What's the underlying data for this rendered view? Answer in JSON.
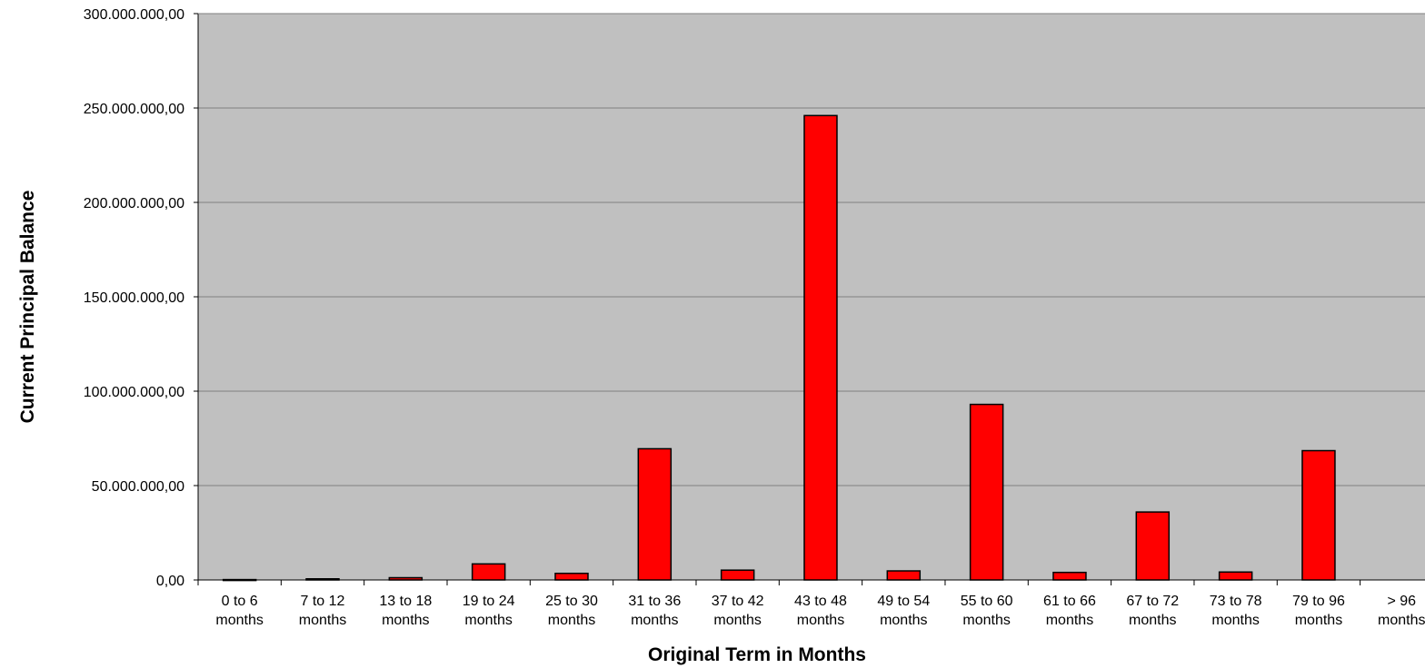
{
  "chart_data": {
    "type": "bar",
    "title": "",
    "xlabel": "Original Term in Months",
    "ylabel": "Current Principal Balance",
    "ylim": [
      0,
      300000000
    ],
    "yticks": [
      {
        "value": 0,
        "label": "0,00"
      },
      {
        "value": 50000000,
        "label": "50.000.000,00"
      },
      {
        "value": 100000000,
        "label": "100.000.000,00"
      },
      {
        "value": 150000000,
        "label": "150.000.000,00"
      },
      {
        "value": 200000000,
        "label": "200.000.000,00"
      },
      {
        "value": 250000000,
        "label": "250.000.000,00"
      },
      {
        "value": 300000000,
        "label": "300.000.000,00"
      }
    ],
    "categories": [
      [
        "0 to 6",
        "months"
      ],
      [
        "7 to 12",
        "months"
      ],
      [
        "13 to 18",
        "months"
      ],
      [
        "19 to 24",
        "months"
      ],
      [
        "25 to 30",
        "months"
      ],
      [
        "31 to 36",
        "months"
      ],
      [
        "37 to 42",
        "months"
      ],
      [
        "43 to 48",
        "months"
      ],
      [
        "49 to 54",
        "months"
      ],
      [
        "55 to 60",
        "months"
      ],
      [
        "61 to 66",
        "months"
      ],
      [
        "67 to 72",
        "months"
      ],
      [
        "73 to 78",
        "months"
      ],
      [
        "79 to 96",
        "months"
      ],
      [
        "> 96",
        "months"
      ]
    ],
    "values": [
      200000,
      600000,
      1200000,
      8500000,
      3500000,
      69500000,
      5200000,
      246000000,
      4800000,
      93000000,
      4000000,
      36000000,
      4200000,
      68500000,
      0
    ],
    "grid": true,
    "legend": "none",
    "colors": {
      "plot_background": "#c0c0c0",
      "bar_fill": "#ff0000",
      "bar_stroke": "#000000",
      "gridline": "#808080"
    }
  }
}
